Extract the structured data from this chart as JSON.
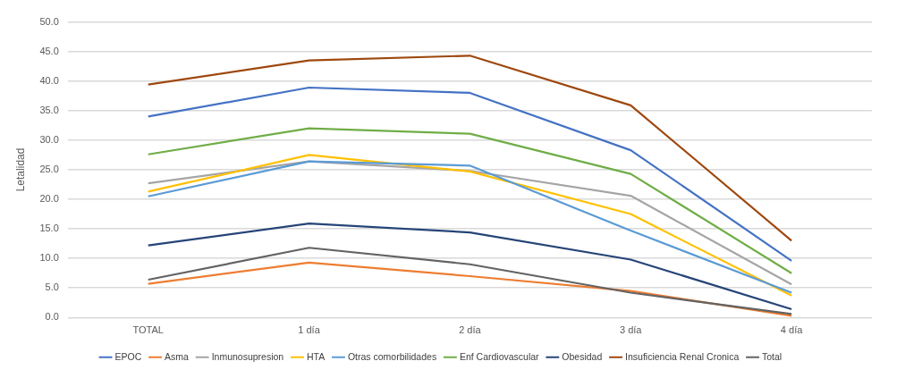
{
  "chart_data": {
    "type": "line",
    "ylabel": "Letalidad",
    "categories": [
      "TOTAL",
      "1 día",
      "2 día",
      "3 día",
      "4 día"
    ],
    "ylim": [
      0,
      50
    ],
    "yticks": [
      {
        "value": 0,
        "label": "0.0"
      },
      {
        "value": 5,
        "label": "5.0"
      },
      {
        "value": 10,
        "label": "10.0"
      },
      {
        "value": 15,
        "label": "15.0"
      },
      {
        "value": 20,
        "label": "20.0"
      },
      {
        "value": 25,
        "label": "25.0"
      },
      {
        "value": 30,
        "label": "30.0"
      },
      {
        "value": 35,
        "label": "35.0"
      },
      {
        "value": 40,
        "label": "40.0"
      },
      {
        "value": 45,
        "label": "45.0"
      },
      {
        "value": 50,
        "label": "50.0"
      }
    ],
    "grid": "y",
    "legend": "bottom",
    "marker": "none",
    "line_style": "solid",
    "series": [
      {
        "name": "EPOC",
        "color": "#4472c4",
        "values": [
          34.0,
          38.9,
          38.0,
          28.3,
          9.6
        ]
      },
      {
        "name": "Asma",
        "color": "#ed7d31",
        "values": [
          5.7,
          9.3,
          7.0,
          4.5,
          0.3
        ]
      },
      {
        "name": "Inmunosupresion",
        "color": "#a5a5a5",
        "values": [
          22.7,
          26.4,
          24.8,
          20.6,
          5.6
        ]
      },
      {
        "name": "HTA",
        "color": "#ffc000",
        "values": [
          21.3,
          27.5,
          24.7,
          17.5,
          3.7
        ]
      },
      {
        "name": "Otras comorbilidades",
        "color": "#5b9bd5",
        "values": [
          20.5,
          26.4,
          25.7,
          14.7,
          4.2
        ]
      },
      {
        "name": "Enf Cardiovascular",
        "color": "#70ad47",
        "values": [
          27.6,
          32.0,
          31.1,
          24.3,
          7.5
        ]
      },
      {
        "name": "Obesidad",
        "color": "#264478",
        "values": [
          12.2,
          15.9,
          14.4,
          9.8,
          1.4
        ]
      },
      {
        "name": "Insuficiencia Renal Cronica",
        "color": "#9e480e",
        "values": [
          39.4,
          43.5,
          44.3,
          35.9,
          13.0
        ]
      },
      {
        "name": "Total",
        "color": "#636363",
        "values": [
          6.4,
          11.8,
          9.0,
          4.2,
          0.6
        ]
      }
    ]
  }
}
